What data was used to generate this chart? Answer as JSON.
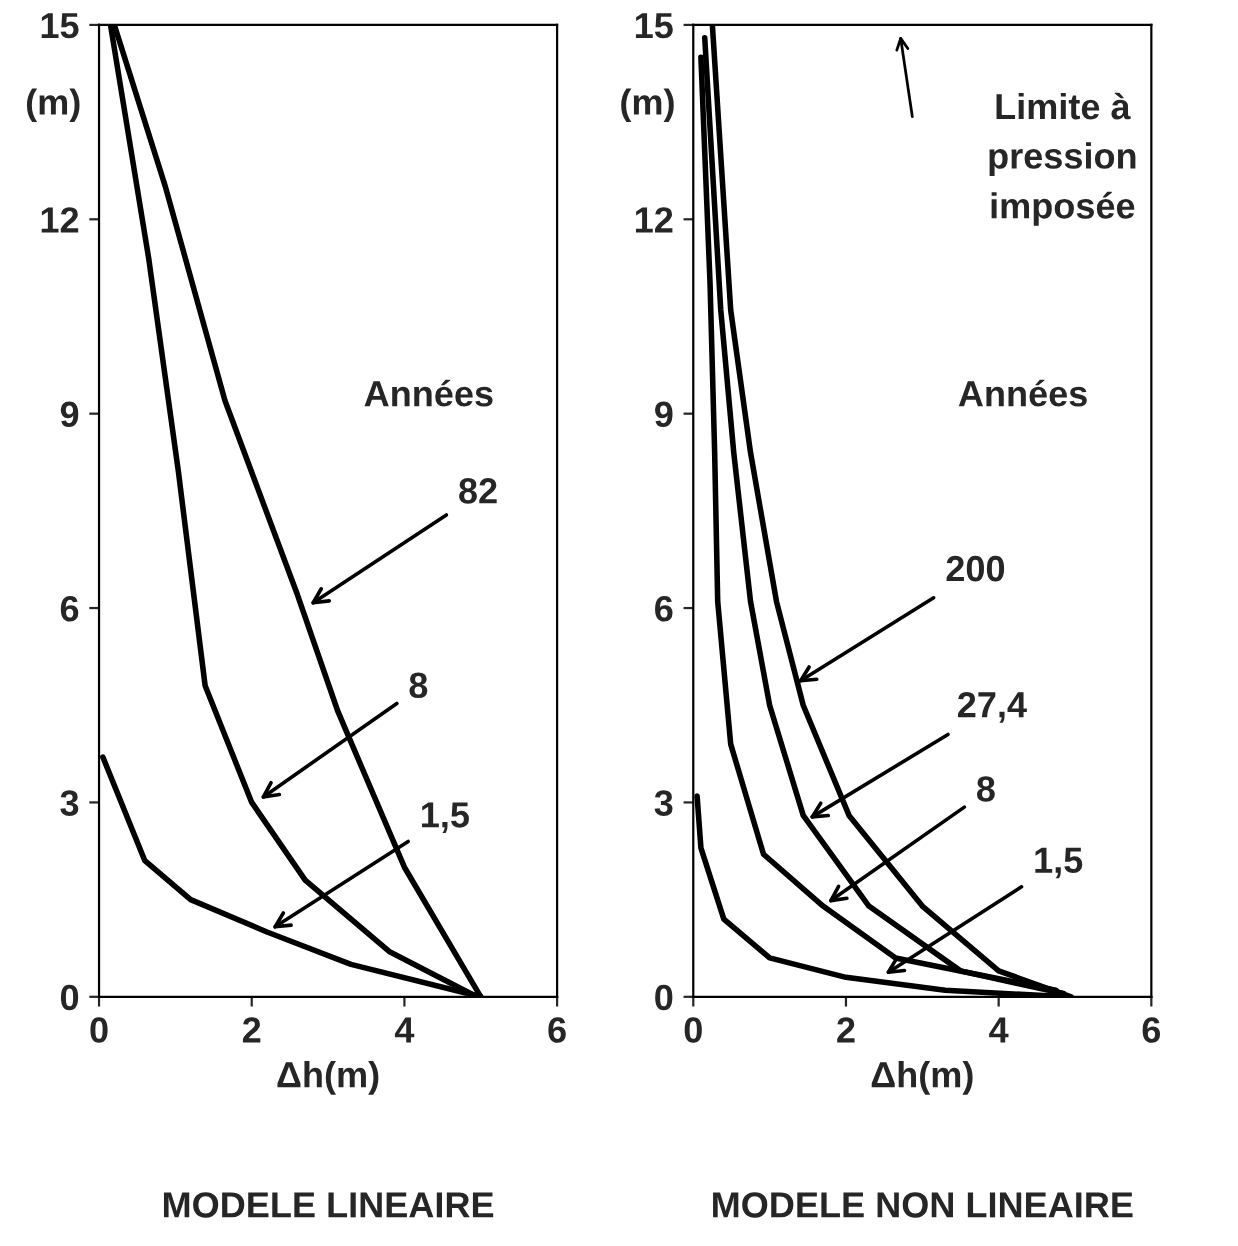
{
  "chart_data": [
    {
      "type": "line",
      "title": "MODELE LINEAIRE",
      "xlabel": "Δh(m)",
      "ylabel": "(m)",
      "xlim": [
        0,
        6
      ],
      "ylim": [
        0,
        15
      ],
      "xticks": [
        0,
        2,
        4,
        6
      ],
      "yticks": [
        0,
        3,
        6,
        9,
        12,
        15
      ],
      "grid": false,
      "legend": false,
      "marker": "none",
      "line_style": "solid",
      "series": [
        {
          "color": "#000000",
          "x": [
            0.2,
            0.87,
            1.65,
            2.6,
            3.13,
            4.0,
            5.0
          ],
          "values": [
            15,
            12.5,
            9.2,
            6.2,
            4.4,
            2.0,
            0
          ]
        },
        {
          "color": "#000000",
          "x": [
            0.15,
            0.65,
            1.04,
            1.39,
            2.0,
            2.7,
            3.8,
            4.95
          ],
          "values": [
            15,
            11.4,
            8.1,
            4.8,
            3.0,
            1.8,
            0.7,
            0
          ]
        },
        {
          "color": "#000000",
          "x": [
            0.05,
            0.6,
            1.2,
            2.2,
            3.3,
            5.0
          ],
          "values": [
            3.7,
            2.1,
            1.5,
            1.0,
            0.5,
            0
          ]
        }
      ],
      "annotations": [
        "Années",
        {
          "text": "82",
          "x": 2.7,
          "y": 6.0
        },
        {
          "text": "8",
          "x": 2.05,
          "y": 3.0
        },
        {
          "text": "1,5",
          "x": 2.2,
          "y": 1.0
        }
      ]
    },
    {
      "type": "line",
      "title": "MODELE NON LINEAIRE",
      "xlabel": "Δh(m)",
      "ylabel": "(m)",
      "xlim": [
        0,
        6
      ],
      "ylim": [
        0,
        15
      ],
      "xticks": [
        0,
        2,
        4,
        6
      ],
      "yticks": [
        0,
        3,
        6,
        9,
        12,
        15
      ],
      "grid": false,
      "legend": false,
      "marker": "none",
      "line_style": "solid",
      "series": [
        {
          "color": "#000000",
          "x": [
            0.25,
            0.49,
            0.75,
            1.09,
            1.44,
            2.04,
            3.0,
            4.0,
            4.95
          ],
          "values": [
            15,
            10.6,
            8.4,
            6.1,
            4.5,
            2.8,
            1.4,
            0.4,
            0
          ]
        },
        {
          "color": "#000000",
          "x": [
            0.15,
            0.36,
            0.53,
            0.75,
            1.0,
            1.44,
            2.3,
            3.5,
            4.85
          ],
          "values": [
            14.8,
            10.6,
            8.4,
            6.1,
            4.5,
            2.8,
            1.4,
            0.4,
            0.05
          ]
        },
        {
          "color": "#000000",
          "x": [
            0.1,
            0.22,
            0.28,
            0.32,
            0.49,
            0.92,
            1.7,
            2.65,
            4.75
          ],
          "values": [
            14.5,
            11.0,
            8.4,
            6.1,
            3.9,
            2.2,
            1.4,
            0.6,
            0.1
          ]
        },
        {
          "color": "#000000",
          "x": [
            0.05,
            0.1,
            0.4,
            1.0,
            2.0,
            3.3,
            4.9
          ],
          "values": [
            3.1,
            2.3,
            1.2,
            0.6,
            0.3,
            0.1,
            0
          ]
        }
      ],
      "annotations": [
        "Années",
        "Limite à\npression\nimposée",
        {
          "text": "200",
          "x": 1.3,
          "y": 4.8
        },
        {
          "text": "27,4",
          "x": 1.45,
          "y": 2.7
        },
        {
          "text": "8",
          "x": 1.7,
          "y": 1.4
        },
        {
          "text": "1,5",
          "x": 2.45,
          "y": 0.3
        }
      ]
    }
  ]
}
